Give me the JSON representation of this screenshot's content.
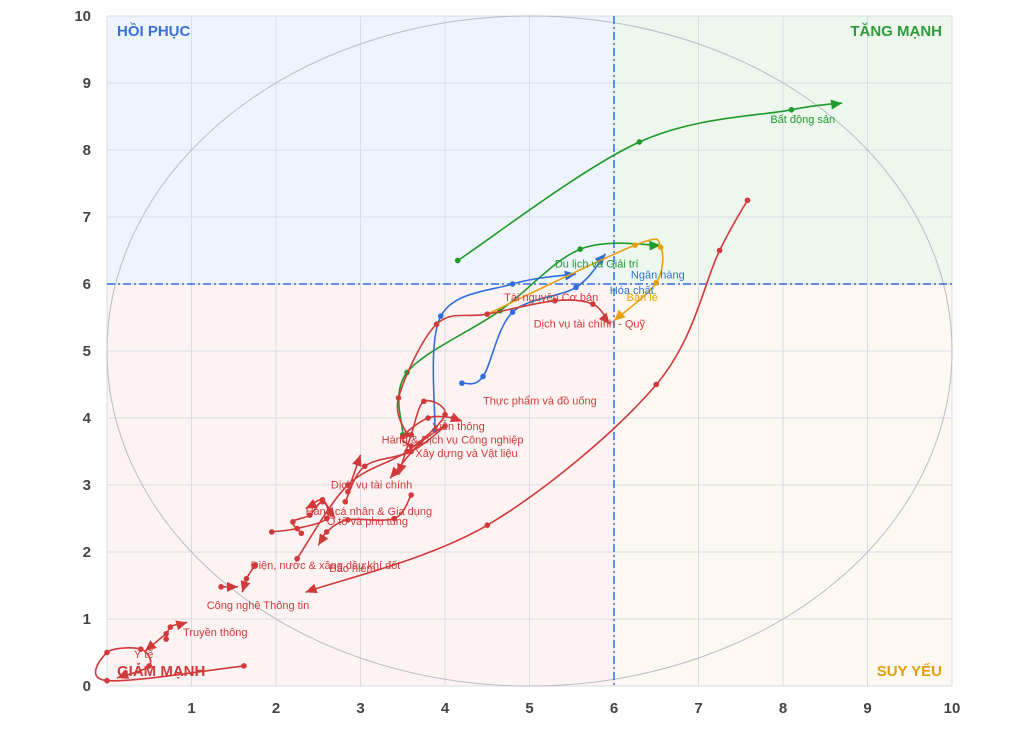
{
  "chart_data": {
    "type": "line",
    "title": "",
    "xlabel": "",
    "ylabel": "",
    "xlim": [
      0,
      10
    ],
    "ylim": [
      0,
      10
    ],
    "x_ticks": [
      "1",
      "2",
      "3",
      "4",
      "5",
      "6",
      "7",
      "8",
      "9",
      "10"
    ],
    "y_ticks": [
      "0",
      "1",
      "2",
      "3",
      "4",
      "5",
      "6",
      "7",
      "8",
      "9",
      "10"
    ],
    "grid": true,
    "reference_lines": {
      "x": 6,
      "y": 6,
      "color": "#2f6fdd",
      "style": "dash-dot"
    },
    "quadrants": [
      {
        "name": "HỒI PHỤC",
        "color": "#3b6fd8",
        "bg": "#eef4fc"
      },
      {
        "name": "TĂNG MẠNH",
        "color": "#2e9a3a",
        "bg": "#edf7ee"
      },
      {
        "name": "GIẢM MẠNH",
        "color": "#d13a3a",
        "bg": "#fdf3f3"
      },
      {
        "name": "SUY YẾU",
        "color": "#e0a010",
        "bg": "#fdf8f1"
      }
    ],
    "series": [
      {
        "name": "Bất động sản",
        "color": "#1f9a2b",
        "label_at": [
          7.85,
          8.4
        ],
        "points": [
          [
            4.15,
            6.35
          ],
          [
            6.3,
            8.12
          ],
          [
            8.1,
            8.6
          ],
          [
            8.7,
            8.7
          ]
        ]
      },
      {
        "name": "Du lịch và Giải trí",
        "color": "#1f9a2b",
        "label_at": [
          5.3,
          6.25
        ],
        "points": [
          [
            3.5,
            3.75
          ],
          [
            3.55,
            4.68
          ],
          [
            4.65,
            5.6
          ],
          [
            5.6,
            6.52
          ],
          [
            6.55,
            6.58
          ]
        ]
      },
      {
        "name": "Hóa chất",
        "color": "#2f6fdd",
        "label_at": [
          5.95,
          5.85
        ],
        "points": [
          [
            3.88,
            3.82
          ],
          [
            3.95,
            5.52
          ],
          [
            4.8,
            6.0
          ],
          [
            5.55,
            6.15
          ]
        ]
      },
      {
        "name": "Ngân hàng",
        "color": "#2f6fdd",
        "label_at": [
          6.2,
          6.08
        ],
        "points": [
          [
            4.2,
            4.52
          ],
          [
            4.45,
            4.62
          ],
          [
            4.8,
            5.58
          ],
          [
            5.55,
            5.95
          ],
          [
            5.9,
            6.45
          ]
        ]
      },
      {
        "name": "Bán lẻ",
        "color": "#e8a010",
        "label_at": [
          6.15,
          5.75
        ],
        "points": [
          [
            4.5,
            5.55
          ],
          [
            6.25,
            6.58
          ],
          [
            6.55,
            6.55
          ],
          [
            6.5,
            6.02
          ],
          [
            6.0,
            5.45
          ]
        ]
      },
      {
        "name": "Tài nguyên Cơ bản",
        "color": "#d13a3a",
        "label_at": [
          4.7,
          5.75
        ],
        "points": [
          [
            3.55,
            3.75
          ],
          [
            3.45,
            4.3
          ],
          [
            3.9,
            5.4
          ],
          [
            4.5,
            5.55
          ],
          [
            5.3,
            5.75
          ],
          [
            5.75,
            5.7
          ],
          [
            5.95,
            5.4
          ]
        ]
      },
      {
        "name": "Dịch vụ tài chính - Quỹ",
        "color": "#d13a3a",
        "label_at": [
          5.05,
          5.35
        ],
        "points": [
          [
            1.62,
            0.3
          ],
          [
            0.0,
            0.08
          ],
          [
            0.0,
            0.5
          ],
          [
            0.4,
            0.55
          ],
          [
            0.5,
            0.3
          ],
          [
            0.12,
            0.12
          ]
        ]
      },
      {
        "name": "Thực phẩm và đồ uống",
        "color": "#d13a3a",
        "label_at": [
          4.45,
          4.2
        ],
        "points": [
          [
            7.58,
            7.25
          ],
          [
            7.25,
            6.5
          ],
          [
            6.5,
            4.5
          ],
          [
            4.5,
            2.4
          ],
          [
            2.35,
            1.4
          ]
        ]
      },
      {
        "name": "Viễn thông",
        "color": "#d13a3a",
        "label_at": [
          3.85,
          3.82
        ],
        "points": [
          [
            2.25,
            1.9
          ],
          [
            2.85,
            3.0
          ],
          [
            3.55,
            3.5
          ],
          [
            4.0,
            4.05
          ],
          [
            3.75,
            4.25
          ],
          [
            3.6,
            3.75
          ],
          [
            3.45,
            3.15
          ]
        ]
      },
      {
        "name": "Hàng & Dịch vụ Công nghiệp",
        "color": "#d13a3a",
        "label_at": [
          3.25,
          3.62
        ],
        "points": [
          [
            2.82,
            2.75
          ],
          [
            3.05,
            3.28
          ],
          [
            3.6,
            3.5
          ],
          [
            4.0,
            3.88
          ],
          [
            3.7,
            3.62
          ],
          [
            3.35,
            3.1
          ]
        ]
      },
      {
        "name": "Xây dựng và Vật liệu",
        "color": "#d13a3a",
        "label_at": [
          3.65,
          3.42
        ],
        "points": [
          [
            3.6,
            3.58
          ],
          [
            3.5,
            3.72
          ],
          [
            3.8,
            4.0
          ],
          [
            4.1,
            4.0
          ],
          [
            4.2,
            3.95
          ]
        ]
      },
      {
        "name": "Dịch vụ tài chính",
        "color": "#d13a3a",
        "label_at": [
          2.65,
          2.95
        ],
        "points": [
          [
            2.85,
            2.9
          ],
          [
            3.0,
            3.45
          ]
        ]
      },
      {
        "name": "Hàng cá nhân & Gia dụng",
        "color": "#d13a3a",
        "label_at": [
          2.35,
          2.55
        ],
        "points": [
          [
            1.95,
            2.3
          ],
          [
            2.25,
            2.35
          ],
          [
            2.6,
            2.5
          ],
          [
            2.55,
            2.78
          ],
          [
            2.35,
            2.65
          ]
        ]
      },
      {
        "name": "Ô tô và phụ tùng",
        "color": "#d13a3a",
        "label_at": [
          2.6,
          2.4
        ],
        "points": [
          [
            3.6,
            2.85
          ],
          [
            3.4,
            2.5
          ],
          [
            2.85,
            2.48
          ],
          [
            2.6,
            2.3
          ],
          [
            2.5,
            2.1
          ]
        ]
      },
      {
        "name": "Điện, nước & xăng dầu khí đốt",
        "color": "#d13a3a",
        "label_at": [
          1.7,
          1.75
        ],
        "points": [
          [
            2.3,
            2.28
          ],
          [
            2.2,
            2.45
          ],
          [
            2.4,
            2.55
          ],
          [
            2.55,
            2.75
          ],
          [
            2.7,
            2.5
          ]
        ]
      },
      {
        "name": "Bảo hiểm",
        "color": "#d13a3a",
        "label_at": [
          2.63,
          1.7
        ],
        "points": [
          [
            1.75,
            1.8
          ],
          [
            1.65,
            1.6
          ],
          [
            1.6,
            1.4
          ]
        ]
      },
      {
        "name": "Công nghệ Thông tin",
        "color": "#d13a3a",
        "label_at": [
          1.18,
          1.15
        ],
        "points": [
          [
            1.35,
            1.48
          ],
          [
            1.55,
            1.48
          ]
        ]
      },
      {
        "name": "Truyền thông",
        "color": "#d13a3a",
        "label_at": [
          0.9,
          0.75
        ],
        "points": [
          [
            0.7,
            0.7
          ],
          [
            0.75,
            0.88
          ],
          [
            0.95,
            0.95
          ]
        ]
      },
      {
        "name": "Y tế",
        "color": "#d13a3a",
        "label_at": [
          0.32,
          0.42
        ],
        "points": [
          [
            0.7,
            0.78
          ],
          [
            0.45,
            0.52
          ]
        ]
      }
    ]
  }
}
